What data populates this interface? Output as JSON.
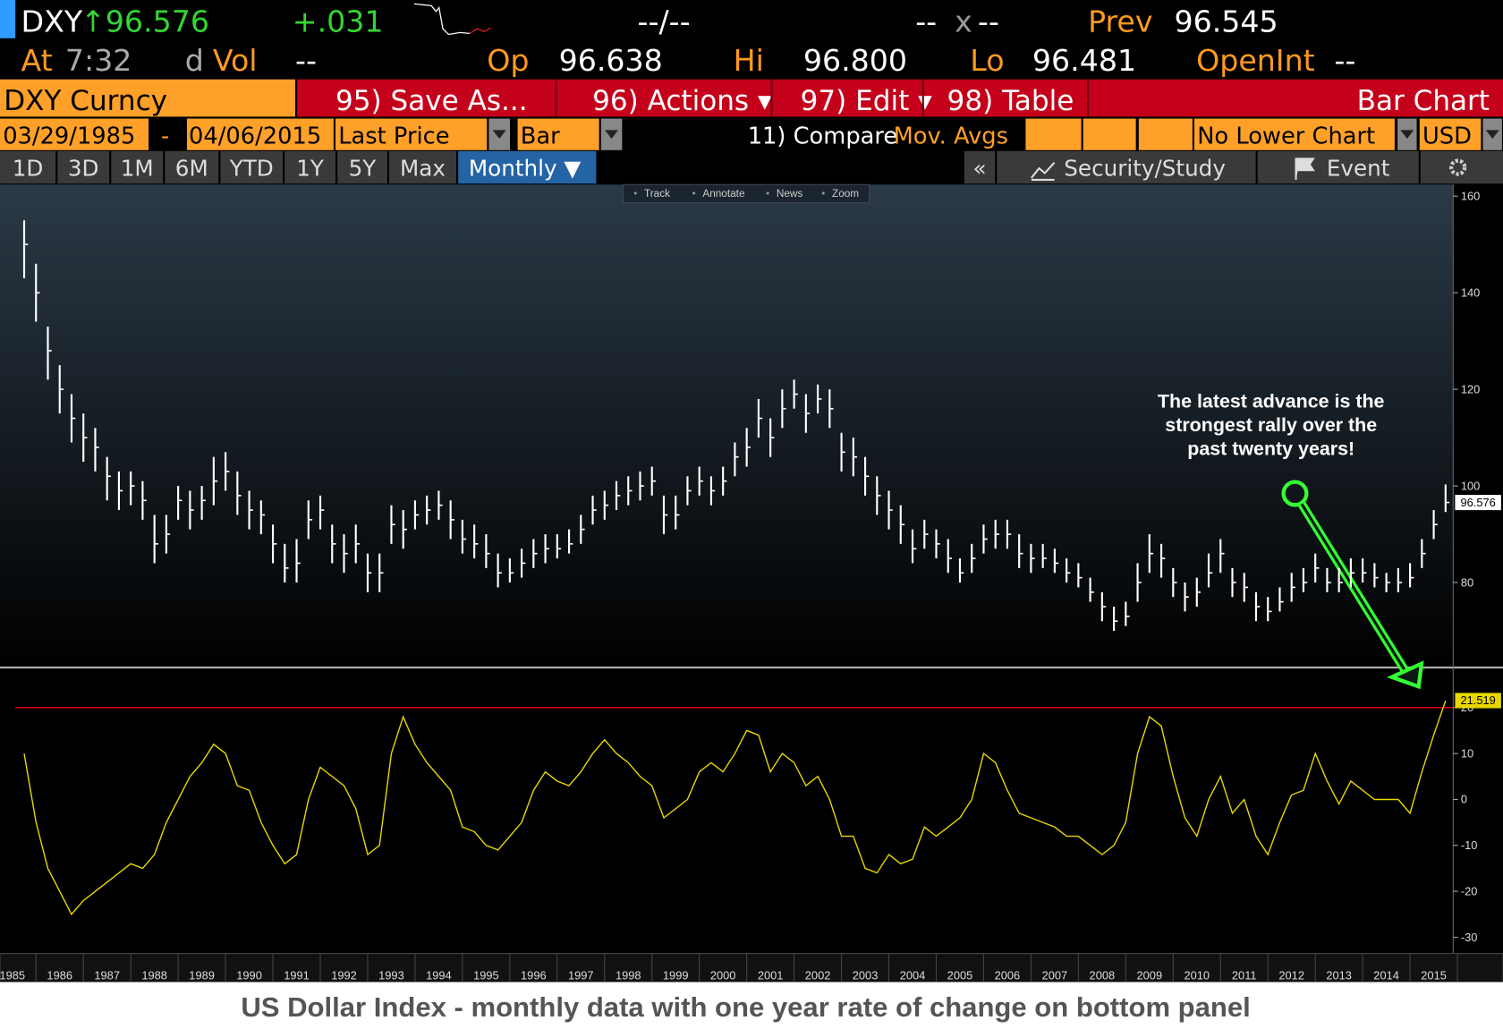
{
  "ticker": {
    "symbol": "DXY",
    "price": "↑96.576",
    "change": "+.031",
    "bidask": "--/--",
    "size_left": "--",
    "size_x": "x",
    "size_right": "--",
    "prev_label": "Prev",
    "prev": "96.545"
  },
  "quote": {
    "at_label": "At",
    "time": "7:32",
    "d": "d",
    "vol_label": "Vol",
    "vol": "--",
    "op_label": "Op",
    "op": "96.638",
    "hi_label": "Hi",
    "hi": "96.800",
    "lo_label": "Lo",
    "lo": "96.481",
    "oi_label": "OpenInt",
    "oi": "--"
  },
  "menu": {
    "security": "DXY Curncy",
    "items": [
      "95) Save As...",
      "96) Actions ▾",
      "97) Edit ▾",
      "98) Table"
    ],
    "chart_kind": "Bar Chart"
  },
  "settings": {
    "start": "03/29/1985",
    "dash": "-",
    "end": "04/06/2015",
    "field": "Last Price",
    "style": "Bar",
    "compare": "11) Compare",
    "mov_avgs": "Mov. Avgs",
    "lower": "No Lower Chart",
    "currency": "USD"
  },
  "periods": [
    "1D",
    "3D",
    "1M",
    "6M",
    "YTD",
    "1Y",
    "5Y",
    "Max"
  ],
  "frequency": "Monthly ▼",
  "toolbar": {
    "collapse": "«",
    "study": "Security/Study",
    "event": "Event"
  },
  "tools": [
    "Track",
    "Annotate",
    "News",
    "Zoom"
  ],
  "caption": "US Dollar Index - monthly data with one year rate of change on bottom panel",
  "chart_data": [
    {
      "type": "ohlc",
      "color": "#ffffff",
      "annotation": [
        "The latest advance is the",
        "strongest rally over the",
        "past twenty years!"
      ],
      "x": [
        1985.25,
        1985.5,
        1985.75,
        1986,
        1986.25,
        1986.5,
        1986.75,
        1987,
        1987.25,
        1987.5,
        1987.75,
        1988,
        1988.25,
        1988.5,
        1988.75,
        1989,
        1989.25,
        1989.5,
        1989.75,
        1990,
        1990.25,
        1990.5,
        1990.75,
        1991,
        1991.25,
        1991.5,
        1991.75,
        1992,
        1992.25,
        1992.5,
        1992.75,
        1993,
        1993.25,
        1993.5,
        1993.75,
        1994,
        1994.25,
        1994.5,
        1994.75,
        1995,
        1995.25,
        1995.5,
        1995.75,
        1996,
        1996.25,
        1996.5,
        1996.75,
        1997,
        1997.25,
        1997.5,
        1997.75,
        1998,
        1998.25,
        1998.5,
        1998.75,
        1999,
        1999.25,
        1999.5,
        1999.75,
        2000,
        2000.25,
        2000.5,
        2000.75,
        2001,
        2001.25,
        2001.5,
        2001.75,
        2002,
        2002.25,
        2002.5,
        2002.75,
        2003,
        2003.25,
        2003.5,
        2003.75,
        2004,
        2004.25,
        2004.5,
        2004.75,
        2005,
        2005.25,
        2005.5,
        2005.75,
        2006,
        2006.25,
        2006.5,
        2006.75,
        2007,
        2007.25,
        2007.5,
        2007.75,
        2008,
        2008.25,
        2008.5,
        2008.75,
        2009,
        2009.25,
        2009.5,
        2009.75,
        2010,
        2010.25,
        2010.5,
        2010.75,
        2011,
        2011.25,
        2011.5,
        2011.75,
        2012,
        2012.25,
        2012.5,
        2012.75,
        2013,
        2013.25,
        2013.5,
        2013.75,
        2014,
        2014.25,
        2014.5,
        2014.75,
        2015,
        2015.25
      ],
      "high": [
        155,
        146,
        133,
        125,
        119,
        115,
        112,
        106,
        103,
        103,
        101,
        94,
        94,
        100,
        99,
        100,
        106,
        107,
        103,
        99,
        97,
        92,
        88,
        89,
        97,
        98,
        92,
        90,
        92,
        86,
        86,
        96,
        95,
        97,
        98,
        99,
        97,
        93,
        92,
        90,
        86,
        85,
        87,
        89,
        90,
        90,
        91,
        94,
        98,
        99,
        101,
        102,
        103,
        104,
        98,
        98,
        102,
        104,
        102,
        104,
        109,
        112,
        118,
        114,
        120,
        122,
        119,
        121,
        120,
        111,
        110,
        106,
        102,
        99,
        96,
        91,
        93,
        91,
        89,
        85,
        88,
        92,
        93,
        93,
        90,
        88,
        88,
        87,
        85,
        84,
        81,
        78,
        75,
        76,
        84,
        90,
        88,
        83,
        80,
        81,
        86,
        89,
        83,
        82,
        78,
        77,
        79,
        82,
        83,
        86,
        83,
        83,
        85,
        85,
        84,
        82,
        83,
        84,
        89,
        95,
        100.3
      ],
      "low": [
        143,
        134,
        122,
        115,
        109,
        105,
        103,
        97,
        95,
        96,
        93,
        84,
        86,
        93,
        91,
        93,
        96,
        99,
        94,
        91,
        90,
        84,
        80,
        80,
        89,
        91,
        84,
        82,
        84,
        78,
        78,
        88,
        87,
        91,
        92,
        93,
        89,
        86,
        85,
        83,
        79,
        80,
        81,
        83,
        84,
        85,
        86,
        88,
        92,
        93,
        95,
        96,
        97,
        98,
        90,
        91,
        96,
        98,
        96,
        98,
        102,
        104,
        110,
        106,
        112,
        116,
        111,
        115,
        112,
        103,
        102,
        98,
        94,
        91,
        88,
        84,
        87,
        85,
        82,
        80,
        82,
        86,
        87,
        87,
        83,
        82,
        83,
        82,
        80,
        79,
        76,
        72,
        70,
        71,
        76,
        82,
        81,
        77,
        74,
        75,
        79,
        82,
        77,
        76,
        72,
        72,
        74,
        76,
        78,
        80,
        78,
        78,
        79,
        80,
        79,
        78,
        78,
        79,
        83,
        89,
        94.6
      ],
      "close": [
        150,
        140,
        128,
        120,
        114,
        110,
        108,
        102,
        99,
        100,
        97,
        88,
        90,
        97,
        95,
        97,
        101,
        103,
        98,
        95,
        94,
        88,
        83,
        84,
        93,
        95,
        88,
        86,
        88,
        82,
        82,
        92,
        91,
        94,
        95,
        96,
        93,
        89,
        88,
        86,
        82,
        82,
        84,
        86,
        87,
        87,
        88,
        91,
        95,
        96,
        98,
        99,
        100,
        101,
        94,
        94,
        99,
        101,
        99,
        101,
        106,
        108,
        114,
        110,
        116,
        119,
        115,
        118,
        116,
        107,
        106,
        102,
        98,
        95,
        92,
        87,
        90,
        88,
        85,
        82,
        85,
        89,
        90,
        90,
        86,
        85,
        85,
        84,
        82,
        81,
        78,
        75,
        72,
        73,
        80,
        86,
        85,
        80,
        77,
        78,
        82,
        86,
        80,
        79,
        75,
        74,
        76,
        79,
        80,
        83,
        80,
        80,
        82,
        82,
        81,
        80,
        80,
        81,
        86,
        92,
        96.576
      ],
      "xlim": [
        1984.74,
        2015.41
      ],
      "ylim": [
        62.6,
        162.4
      ],
      "yticks": [
        80,
        100,
        120,
        140,
        160
      ]
    },
    {
      "type": "line",
      "color": "#e8d800",
      "reference": 20,
      "reference_color": "#d00000",
      "x": [
        1985.25,
        1985.5,
        1985.75,
        1986,
        1986.25,
        1986.5,
        1986.75,
        1987,
        1987.25,
        1987.5,
        1987.75,
        1988,
        1988.25,
        1988.5,
        1988.75,
        1989,
        1989.25,
        1989.5,
        1989.75,
        1990,
        1990.25,
        1990.5,
        1990.75,
        1991,
        1991.25,
        1991.5,
        1991.75,
        1992,
        1992.25,
        1992.5,
        1992.75,
        1993,
        1993.25,
        1993.5,
        1993.75,
        1994,
        1994.25,
        1994.5,
        1994.75,
        1995,
        1995.25,
        1995.5,
        1995.75,
        1996,
        1996.25,
        1996.5,
        1996.75,
        1997,
        1997.25,
        1997.5,
        1997.75,
        1998,
        1998.25,
        1998.5,
        1998.75,
        1999,
        1999.25,
        1999.5,
        1999.75,
        2000,
        2000.25,
        2000.5,
        2000.75,
        2001,
        2001.25,
        2001.5,
        2001.75,
        2002,
        2002.25,
        2002.5,
        2002.75,
        2003,
        2003.25,
        2003.5,
        2003.75,
        2004,
        2004.25,
        2004.5,
        2004.75,
        2005,
        2005.25,
        2005.5,
        2005.75,
        2006,
        2006.25,
        2006.5,
        2006.75,
        2007,
        2007.25,
        2007.5,
        2007.75,
        2008,
        2008.25,
        2008.5,
        2008.75,
        2009,
        2009.25,
        2009.5,
        2009.75,
        2010,
        2010.25,
        2010.5,
        2010.75,
        2011,
        2011.25,
        2011.5,
        2011.75,
        2012,
        2012.25,
        2012.5,
        2012.75,
        2013,
        2013.25,
        2013.5,
        2013.75,
        2014,
        2014.25,
        2014.5,
        2014.75,
        2015,
        2015.25
      ],
      "values": [
        10,
        -5,
        -15,
        -20,
        -25,
        -22,
        -20,
        -18,
        -16,
        -14,
        -15,
        -12,
        -5,
        0,
        5,
        8,
        12,
        10,
        3,
        2,
        -5,
        -10,
        -14,
        -12,
        0,
        7,
        5,
        3,
        -2,
        -12,
        -10,
        10,
        18,
        12,
        8,
        5,
        2,
        -6,
        -7,
        -10,
        -11,
        -8,
        -5,
        2,
        6,
        4,
        3,
        6,
        10,
        13,
        10,
        8,
        5,
        3,
        -4,
        -2,
        0,
        6,
        8,
        6,
        10,
        15,
        14,
        6,
        10,
        8,
        3,
        5,
        0,
        -8,
        -8,
        -15,
        -16,
        -12,
        -14,
        -13,
        -6,
        -8,
        -6,
        -4,
        0,
        10,
        8,
        2,
        -3,
        -4,
        -5,
        -6,
        -8,
        -8,
        -10,
        -12,
        -10,
        -5,
        10,
        18,
        16,
        5,
        -4,
        -8,
        0,
        5,
        -3,
        0,
        -8,
        -12,
        -5,
        1,
        2,
        10,
        4,
        -1,
        4,
        2,
        0,
        0,
        0,
        -3,
        6,
        14,
        21.519
      ],
      "xlim": [
        1984.74,
        2015.41
      ],
      "ylim": [
        -33.1,
        28.3
      ],
      "yticks": [
        -30,
        -20,
        -10,
        0,
        10,
        20
      ],
      "xticks": [
        1985,
        1986,
        1987,
        1988,
        1989,
        1990,
        1991,
        1992,
        1993,
        1994,
        1995,
        1996,
        1997,
        1998,
        1999,
        2000,
        2001,
        2002,
        2003,
        2004,
        2005,
        2006,
        2007,
        2008,
        2009,
        2010,
        2011,
        2012,
        2013,
        2014,
        2015
      ]
    }
  ]
}
